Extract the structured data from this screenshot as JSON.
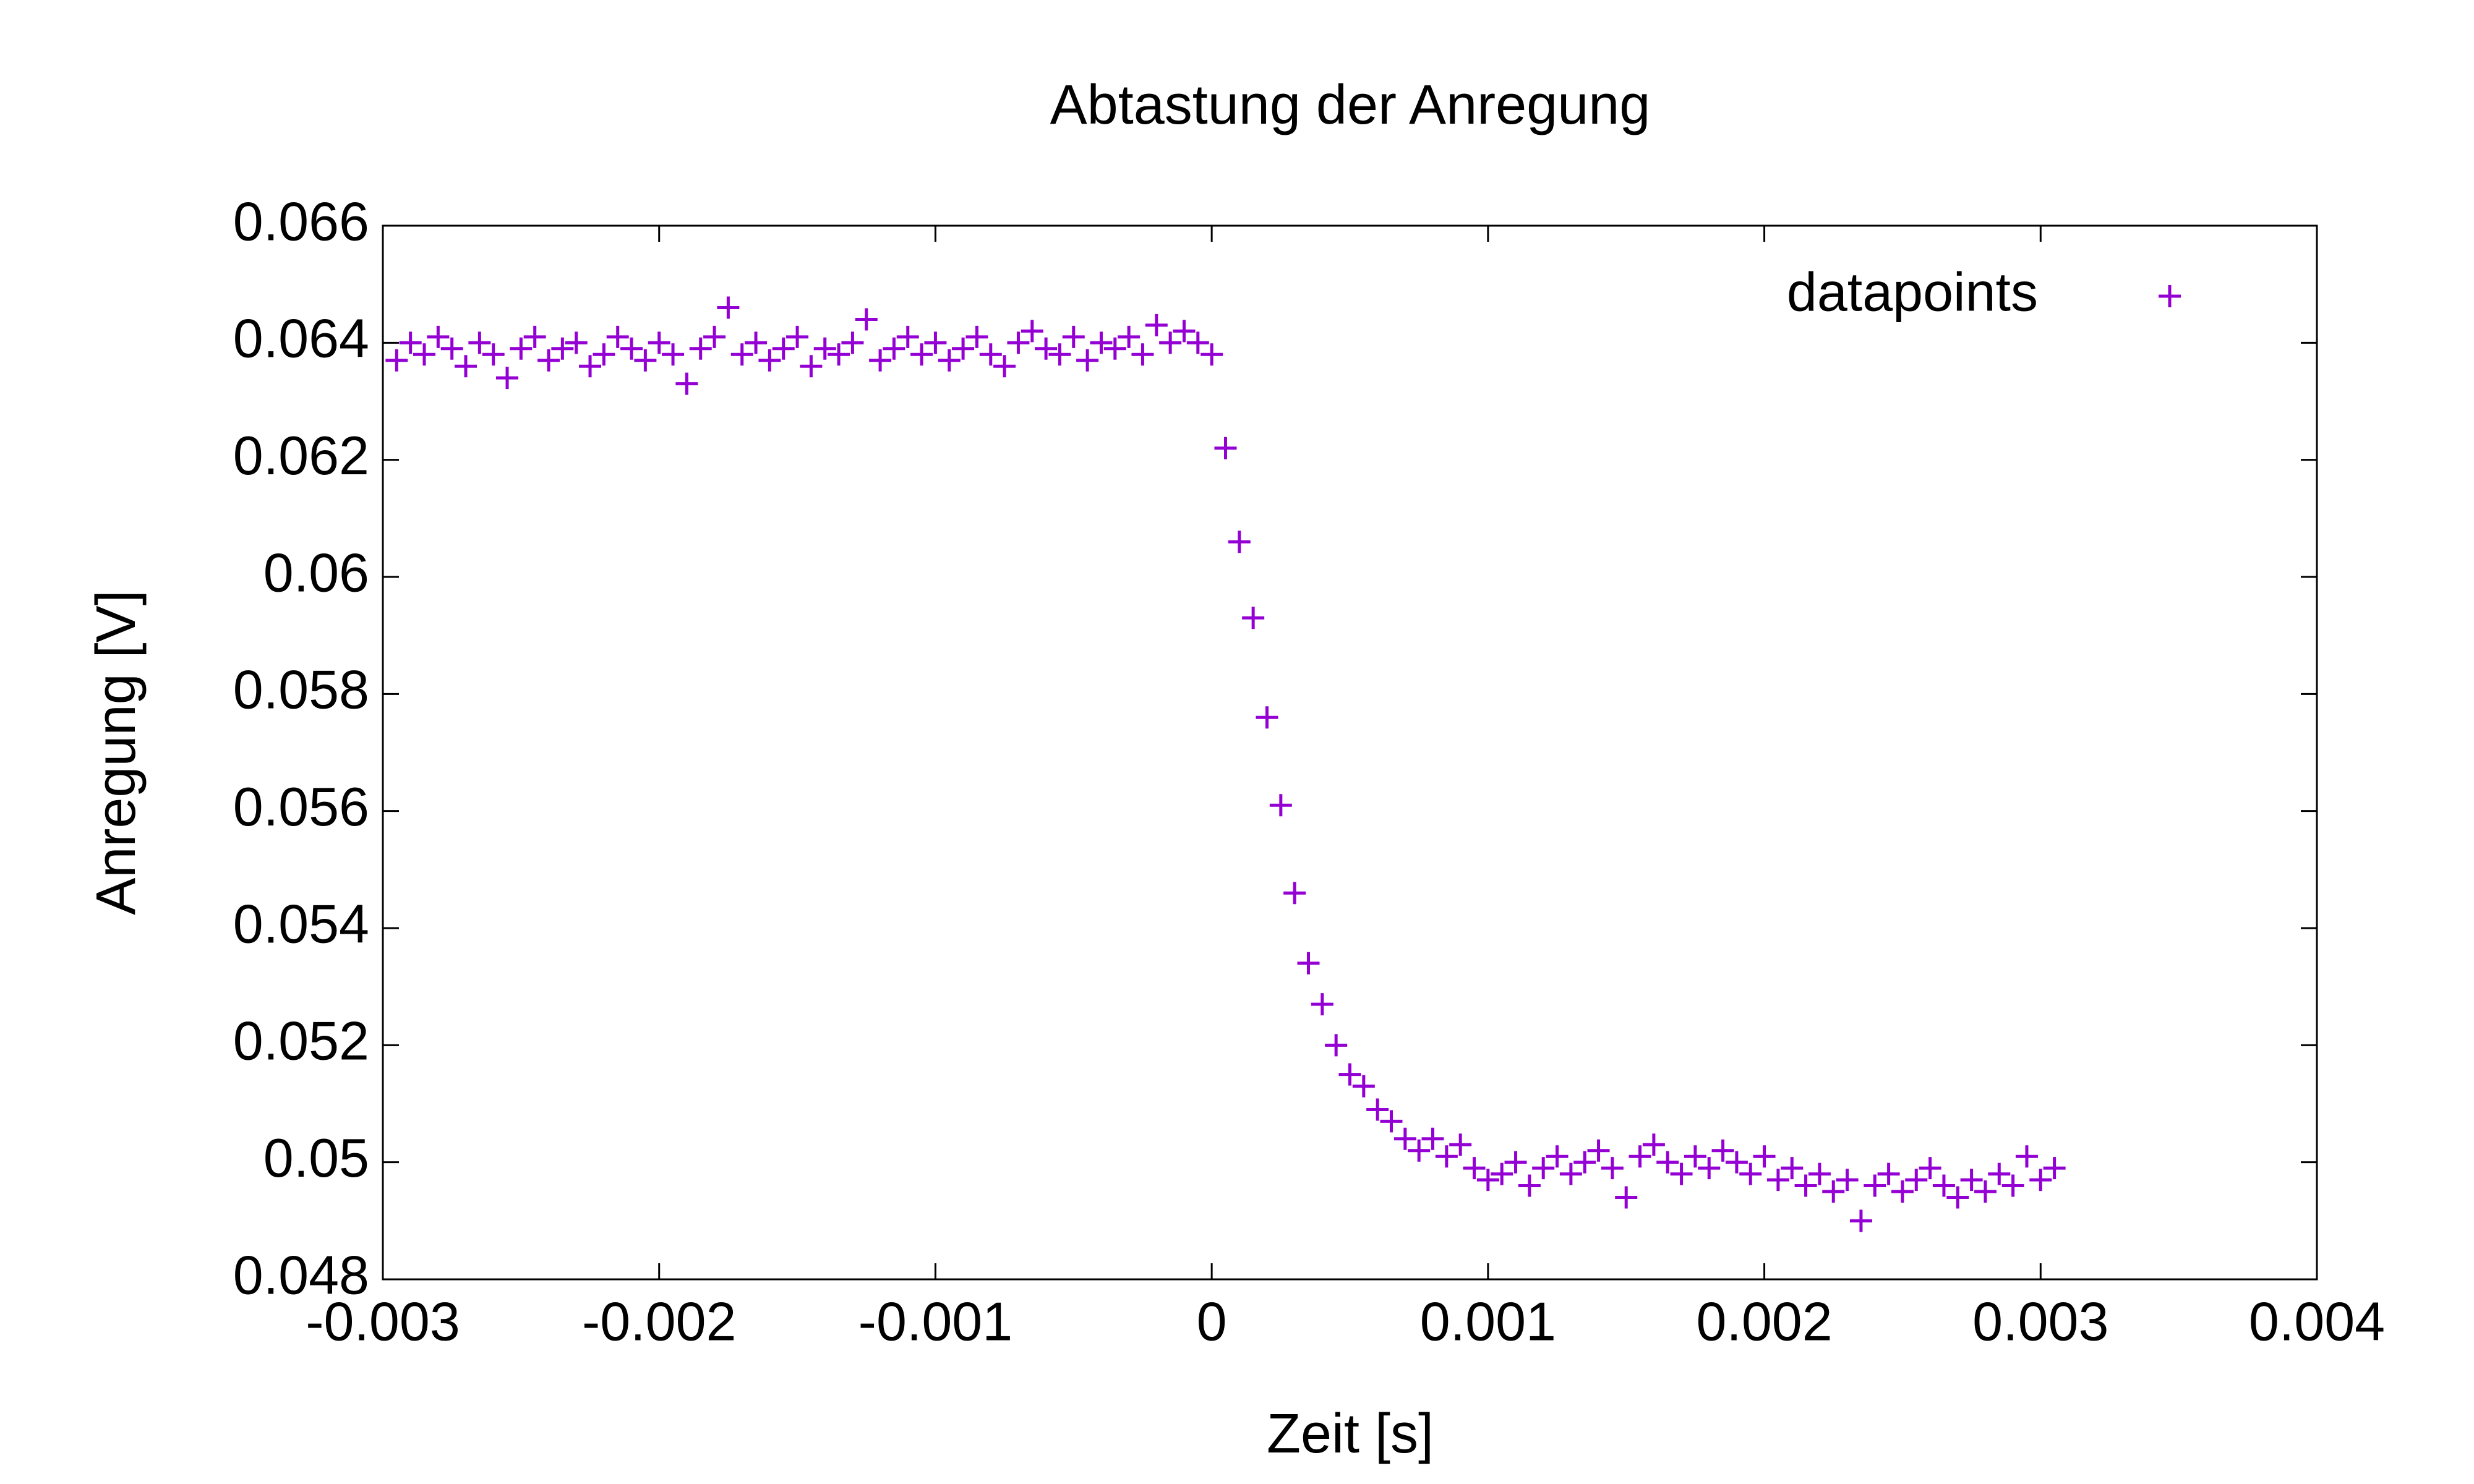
{
  "chart_data": {
    "type": "scatter",
    "title": "Abtastung der Anregung",
    "x_label": "Zeit [s]",
    "y_label": "Anregung [V]",
    "xlim": [
      -0.003,
      0.004
    ],
    "ylim": [
      0.048,
      0.066
    ],
    "xticks": [
      -0.003,
      -0.002,
      -0.001,
      0,
      0.001,
      0.002,
      0.003,
      0.004
    ],
    "yticks": [
      0.048,
      0.05,
      0.052,
      0.054,
      0.056,
      0.058,
      0.06,
      0.062,
      0.064,
      0.066
    ],
    "grid": false,
    "legend_position": "top-right",
    "series": [
      {
        "name": "datapoints",
        "color": "#9400d3",
        "x": [
          -0.00295,
          -0.0029,
          -0.00285,
          -0.0028,
          -0.00275,
          -0.0027,
          -0.00265,
          -0.0026,
          -0.00255,
          -0.0025,
          -0.00245,
          -0.0024,
          -0.00235,
          -0.0023,
          -0.00225,
          -0.0022,
          -0.00215,
          -0.0021,
          -0.00205,
          -0.002,
          -0.00195,
          -0.0019,
          -0.00185,
          -0.0018,
          -0.00175,
          -0.0017,
          -0.00165,
          -0.0016,
          -0.00155,
          -0.0015,
          -0.00145,
          -0.0014,
          -0.00135,
          -0.0013,
          -0.00125,
          -0.0012,
          -0.00115,
          -0.0011,
          -0.00105,
          -0.001,
          -0.00095,
          -0.0009,
          -0.00085,
          -0.0008,
          -0.00075,
          -0.0007,
          -0.00065,
          -0.0006,
          -0.00055,
          -0.0005,
          -0.00045,
          -0.0004,
          -0.00035,
          -0.0003,
          -0.00025,
          -0.0002,
          -0.00015,
          -0.0001,
          -5e-05,
          0,
          5e-05,
          0.0001,
          0.00015,
          0.0002,
          0.00025,
          0.0003,
          0.00035,
          0.0004,
          0.00045,
          0.0005,
          0.00055,
          0.0006,
          0.00065,
          0.0007,
          0.00075,
          0.0008,
          0.00085,
          0.0009,
          0.00095,
          0.001,
          0.00105,
          0.0011,
          0.00115,
          0.0012,
          0.00125,
          0.0013,
          0.00135,
          0.0014,
          0.00145,
          0.0015,
          0.00155,
          0.0016,
          0.00165,
          0.0017,
          0.00175,
          0.0018,
          0.00185,
          0.0019,
          0.00195,
          0.002,
          0.00205,
          0.0021,
          0.00215,
          0.0022,
          0.00225,
          0.0023,
          0.00235,
          0.0024,
          0.00245,
          0.0025,
          0.00255,
          0.0026,
          0.00265,
          0.0027,
          0.00275,
          0.0028,
          0.00285,
          0.0029,
          0.00295,
          0.003,
          0.00305
        ],
        "values": [
          0.0637,
          0.064,
          0.0638,
          0.0641,
          0.0639,
          0.0636,
          0.064,
          0.0638,
          0.0634,
          0.0639,
          0.0641,
          0.0637,
          0.0639,
          0.064,
          0.0636,
          0.0638,
          0.0641,
          0.0639,
          0.0637,
          0.064,
          0.0638,
          0.0633,
          0.0639,
          0.0641,
          0.0646,
          0.0638,
          0.064,
          0.0637,
          0.0639,
          0.0641,
          0.0636,
          0.0639,
          0.0638,
          0.064,
          0.0644,
          0.0637,
          0.0639,
          0.0641,
          0.0638,
          0.064,
          0.0637,
          0.0639,
          0.0641,
          0.0638,
          0.0636,
          0.064,
          0.0642,
          0.0639,
          0.0638,
          0.0641,
          0.0637,
          0.064,
          0.0639,
          0.0641,
          0.0638,
          0.0643,
          0.064,
          0.0642,
          0.064,
          0.0638,
          0.0622,
          0.0606,
          0.0593,
          0.0576,
          0.0561,
          0.0546,
          0.0534,
          0.0527,
          0.052,
          0.0515,
          0.0513,
          0.0509,
          0.0507,
          0.0504,
          0.0502,
          0.0504,
          0.0501,
          0.0503,
          0.0499,
          0.0497,
          0.0498,
          0.05,
          0.0496,
          0.0499,
          0.0501,
          0.0498,
          0.05,
          0.0502,
          0.0499,
          0.0494,
          0.0501,
          0.0503,
          0.05,
          0.0498,
          0.0501,
          0.0499,
          0.0502,
          0.05,
          0.0498,
          0.0501,
          0.0497,
          0.0499,
          0.0496,
          0.0498,
          0.0495,
          0.0497,
          0.049,
          0.0496,
          0.0498,
          0.0495,
          0.0497,
          0.0499,
          0.0496,
          0.0494,
          0.0497,
          0.0495,
          0.0498,
          0.0496,
          0.0501,
          0.0497,
          0.0499
        ]
      }
    ]
  }
}
